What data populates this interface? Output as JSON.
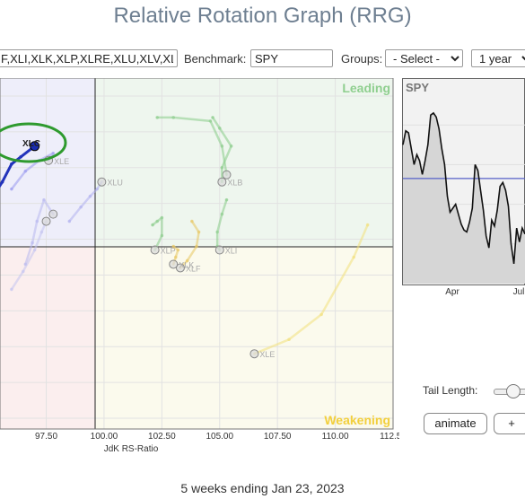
{
  "page": {
    "title": "Relative Rotation Graph (RRG)",
    "footer": "5 weeks ending Jan 23, 2023"
  },
  "controls": {
    "symbols_value": "F,XLI,XLK,XLP,XLRE,XLU,XLV,XL",
    "benchmark_label": "Benchmark:",
    "benchmark_value": "SPY",
    "groups_label": "Groups:",
    "groups_value": "- Select -",
    "period_value": "1 year",
    "tail_length_label": "Tail Length:",
    "animate_label": "animate",
    "plus_label": "+"
  },
  "colors": {
    "leading_bg": "#eef6ee",
    "improving_bg": "#eeeefa",
    "lagging_bg": "#fbeeee",
    "weakening_bg": "#fbfaed",
    "leading_text": "#8fcf8f",
    "weakening_text": "#f2cf3c",
    "xlc": "#1a2db0",
    "highlight": "#2e9a2e"
  },
  "chart_data": [
    {
      "type": "scatter",
      "xlabel": "JdK RS-Ratio",
      "xlim": [
        95.5,
        112.5
      ],
      "ylim": [
        94.2,
        104.0
      ],
      "xticks": [
        "97.50",
        "100.00",
        "102.50",
        "105.00",
        "107.50",
        "110.00",
        "112.50"
      ],
      "quadrants": [
        "Leading",
        "Weakening"
      ],
      "highlight_label": "XLC",
      "series": [
        {
          "name": "XLC",
          "color": "#2233bb",
          "points": [
            [
              95.2,
              100.7
            ],
            [
              95.6,
              101.1
            ],
            [
              96.0,
              101.6
            ],
            [
              96.4,
              101.8
            ],
            [
              97.0,
              102.1
            ]
          ]
        },
        {
          "name": "XLE",
          "color": "#9999ee",
          "points": [
            [
              96.0,
              100.9
            ],
            [
              96.6,
              101.4
            ],
            [
              97.2,
              101.7
            ],
            [
              97.8,
              101.9
            ],
            [
              97.6,
              101.7
            ]
          ]
        },
        {
          "name": "XLU",
          "color": "#b0b0ee",
          "points": [
            [
              98.5,
              100.0
            ],
            [
              99.0,
              100.4
            ],
            [
              99.4,
              100.7
            ],
            [
              99.7,
              100.9
            ],
            [
              99.9,
              101.1
            ]
          ]
        },
        {
          "name": "",
          "color": "#b8b8ee",
          "points": [
            [
              96.6,
              98.8
            ],
            [
              96.9,
              99.4
            ],
            [
              97.1,
              100.0
            ],
            [
              97.4,
              100.6
            ],
            [
              97.8,
              100.2
            ]
          ]
        },
        {
          "name": "",
          "color": "#c4c4f0",
          "points": [
            [
              96.0,
              98.1
            ],
            [
              96.5,
              98.6
            ],
            [
              97.0,
              99.2
            ],
            [
              97.3,
              99.7
            ],
            [
              97.5,
              100.0
            ]
          ]
        },
        {
          "name": "",
          "color": "#88cc88",
          "points": [
            [
              102.3,
              102.9
            ],
            [
              103.0,
              102.9
            ],
            [
              104.6,
              102.8
            ],
            [
              105.1,
              102.1
            ],
            [
              105.3,
              101.3
            ]
          ]
        },
        {
          "name": "XLB",
          "color": "#88cc88",
          "points": [
            [
              104.7,
              102.9
            ],
            [
              105.0,
              102.6
            ],
            [
              105.5,
              102.1
            ],
            [
              105.1,
              101.5
            ],
            [
              105.1,
              101.1
            ]
          ]
        },
        {
          "name": "XLI",
          "color": "#88cc88",
          "points": [
            [
              105.3,
              100.6
            ],
            [
              105.1,
              100.2
            ],
            [
              104.9,
              99.7
            ],
            [
              104.9,
              99.3
            ],
            [
              105.0,
              99.2
            ]
          ]
        },
        {
          "name": "XLP",
          "color": "#88cc88",
          "points": [
            [
              102.1,
              99.9
            ],
            [
              102.3,
              100.0
            ],
            [
              102.5,
              100.1
            ],
            [
              102.5,
              99.6
            ],
            [
              102.2,
              99.2
            ]
          ]
        },
        {
          "name": "XLF",
          "color": "#e8c660",
          "points": [
            [
              103.8,
              100.0
            ],
            [
              104.1,
              99.7
            ],
            [
              104.0,
              99.3
            ],
            [
              103.6,
              98.9
            ],
            [
              103.3,
              98.7
            ]
          ]
        },
        {
          "name": "XLK",
          "color": "#e8c660",
          "points": [
            [
              103.0,
              99.3
            ],
            [
              103.2,
              99.2
            ],
            [
              103.1,
              99.0
            ],
            [
              103.0,
              98.8
            ]
          ]
        },
        {
          "name": "XLE",
          "color": "#f2e07a",
          "points": [
            [
              111.4,
              99.9
            ],
            [
              110.8,
              99.0
            ],
            [
              109.4,
              97.4
            ],
            [
              108.0,
              96.7
            ],
            [
              106.5,
              96.3
            ]
          ]
        }
      ]
    },
    {
      "type": "line",
      "title": "SPY",
      "xticks": [
        "Apr",
        "Jul"
      ],
      "ylim": [
        0,
        1
      ],
      "reference_line": 0.53,
      "values": [
        0.7,
        0.77,
        0.76,
        0.68,
        0.6,
        0.65,
        0.62,
        0.55,
        0.62,
        0.7,
        0.85,
        0.86,
        0.84,
        0.78,
        0.68,
        0.6,
        0.44,
        0.36,
        0.38,
        0.4,
        0.35,
        0.3,
        0.27,
        0.26,
        0.31,
        0.38,
        0.6,
        0.57,
        0.47,
        0.37,
        0.24,
        0.18,
        0.32,
        0.29,
        0.37,
        0.49,
        0.51,
        0.47,
        0.39,
        0.2,
        0.1,
        0.28,
        0.21,
        0.28,
        0.25
      ]
    }
  ]
}
